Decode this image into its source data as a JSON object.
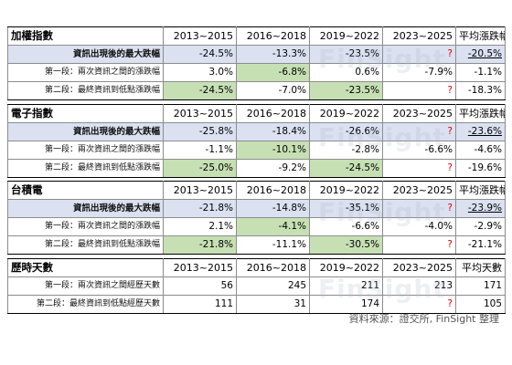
{
  "columns": [
    "2013~2015",
    "2016~2018",
    "2019~2022",
    "2023~2025"
  ],
  "tables": [
    {
      "title": "加權指數",
      "avg_header": "平均漲跌幅",
      "rows": [
        {
          "label": "資訊出現後的最大跌幅",
          "values": [
            "-24.5%",
            "-13.3%",
            "-23.5%",
            "?"
          ],
          "avg": "-20.5%"
        },
        {
          "label": "第一段：兩次資訊之間的漲跌幅",
          "values": [
            "3.0%",
            "-6.8%",
            "0.6%",
            "-7.9%"
          ],
          "avg": "-1.1%"
        },
        {
          "label": "第二段：最終資訊到低點漲跌幅",
          "values": [
            "-24.5%",
            "-7.0%",
            "-23.5%",
            "?"
          ],
          "avg": "-18.3%"
        }
      ]
    },
    {
      "title": "電子指數",
      "avg_header": "平均漲跌幅",
      "rows": [
        {
          "label": "資訊出現後的最大跌幅",
          "values": [
            "-25.8%",
            "-18.4%",
            "-26.6%",
            "?"
          ],
          "avg": "-23.6%"
        },
        {
          "label": "第一段：兩次資訊之間的漲跌幅",
          "values": [
            "-1.1%",
            "-10.1%",
            "-2.8%",
            "-6.6%"
          ],
          "avg": "-4.6%"
        },
        {
          "label": "第二段：最終資訊到低點漲跌幅",
          "values": [
            "-25.0%",
            "-9.2%",
            "-24.5%",
            "?"
          ],
          "avg": "-19.6%"
        }
      ]
    },
    {
      "title": "台積電",
      "avg_header": "平均漲跌幅",
      "rows": [
        {
          "label": "資訊出現後的最大跌幅",
          "values": [
            "-21.8%",
            "-14.8%",
            "-35.1%",
            "?"
          ],
          "avg": "-23.9%"
        },
        {
          "label": "第一段：兩次資訊之間的漲跌幅",
          "values": [
            "2.1%",
            "-4.1%",
            "-6.6%",
            "-4.0%"
          ],
          "avg": "-2.9%"
        },
        {
          "label": "第二段：最終資訊到低點漲跌幅",
          "values": [
            "-21.8%",
            "-11.1%",
            "-30.5%",
            "?"
          ],
          "avg": "-21.1%"
        }
      ]
    },
    {
      "title": "歷時天數",
      "avg_header": "平均天數",
      "rows": [
        {
          "label": "第一段：兩次資訊之間經歷天數",
          "values": [
            "56",
            "245",
            "211",
            "213"
          ],
          "avg": "171"
        },
        {
          "label": "第二段：最終資訊到低點經歷天數",
          "values": [
            "111",
            "31",
            "174",
            "?"
          ],
          "avg": "105"
        }
      ]
    }
  ],
  "watermark": "FinSight",
  "source": "資料來源：證交所, FinSight 整理",
  "colors": {
    "highlight_row": "#dbe1f1",
    "highlight_cell": "#c6e0b4",
    "question_mark": "#e00000"
  }
}
